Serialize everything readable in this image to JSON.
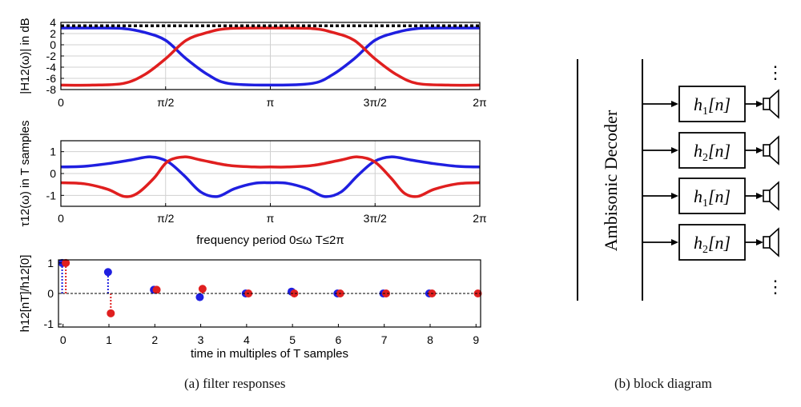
{
  "captions": {
    "a": "(a) filter responses",
    "b": "(b) block diagram"
  },
  "colors": {
    "series1": "#1f1fe0",
    "series2": "#e01f1f",
    "reference": "#000000",
    "grid": "#d0d0d0"
  },
  "chart_data": [
    {
      "type": "line",
      "ylabel": "|H12(ω)| in dB",
      "ylim": [
        -8,
        4
      ],
      "yticks": [
        "4",
        "2",
        "0",
        "-2",
        "-4",
        "-6",
        "-8"
      ],
      "xlim": [
        0,
        6.2832
      ],
      "xticks": [
        "0",
        "π/2",
        "π",
        "3π/2",
        "2π"
      ],
      "grid": true,
      "series": [
        {
          "color": "blue",
          "x": [
            0,
            0.47,
            0.94,
            1.26,
            1.57,
            1.88,
            2.2,
            2.51,
            3.14,
            3.77,
            4.08,
            4.4,
            4.71,
            5.03,
            5.34,
            5.81,
            6.28
          ],
          "y": [
            3,
            3,
            2.9,
            2.2,
            0.8,
            -2.5,
            -5.3,
            -6.9,
            -7.2,
            -6.9,
            -5.3,
            -2.5,
            0.8,
            2.2,
            2.9,
            3,
            3
          ]
        },
        {
          "color": "red",
          "x": [
            0,
            0.47,
            0.94,
            1.26,
            1.57,
            1.88,
            2.2,
            2.51,
            3.14,
            3.77,
            4.08,
            4.4,
            4.71,
            5.03,
            5.34,
            5.81,
            6.28
          ],
          "y": [
            -7.2,
            -7.2,
            -6.9,
            -5.3,
            -2.5,
            0.8,
            2.2,
            2.9,
            3,
            2.9,
            2.2,
            0.8,
            -2.5,
            -5.3,
            -6.9,
            -7.2,
            -7.2
          ]
        },
        {
          "color": "black-dotted",
          "x": [
            0,
            6.28
          ],
          "y": [
            3.4,
            3.4
          ]
        }
      ]
    },
    {
      "type": "line",
      "ylabel": "τ12(ω) in T samples",
      "xlabel": "frequency period 0≤ω T≤2π",
      "ylim": [
        -1.5,
        1.5
      ],
      "yticks": [
        "1",
        "0",
        "-1"
      ],
      "xlim": [
        0,
        6.2832
      ],
      "xticks": [
        "0",
        "π/2",
        "π",
        "3π/2",
        "2π"
      ],
      "grid": true,
      "series": [
        {
          "color": "blue",
          "x": [
            0,
            0.35,
            0.7,
            1.05,
            1.35,
            1.6,
            1.85,
            2.1,
            2.35,
            2.6,
            2.9,
            3.14,
            3.4,
            3.7,
            3.95,
            4.2,
            4.45,
            4.7,
            4.95,
            5.25,
            5.6,
            5.95,
            6.28
          ],
          "y": [
            0.3,
            0.33,
            0.45,
            0.62,
            0.76,
            0.55,
            -0.1,
            -0.85,
            -1.05,
            -0.7,
            -0.45,
            -0.42,
            -0.45,
            -0.7,
            -1.05,
            -0.85,
            -0.1,
            0.55,
            0.76,
            0.62,
            0.45,
            0.33,
            0.3
          ]
        },
        {
          "color": "red",
          "x": [
            0,
            0.35,
            0.7,
            0.95,
            1.15,
            1.4,
            1.6,
            1.85,
            2.1,
            2.5,
            2.9,
            3.14,
            3.4,
            3.8,
            4.2,
            4.45,
            4.7,
            4.95,
            5.15,
            5.35,
            5.6,
            5.95,
            6.28
          ],
          "y": [
            -0.42,
            -0.47,
            -0.72,
            -1.05,
            -0.9,
            -0.2,
            0.55,
            0.76,
            0.62,
            0.38,
            0.3,
            0.3,
            0.3,
            0.38,
            0.62,
            0.76,
            0.55,
            -0.2,
            -0.9,
            -1.05,
            -0.72,
            -0.47,
            -0.42
          ]
        }
      ]
    },
    {
      "type": "stem",
      "ylabel": "h12[nT]/h12[0]",
      "xlabel": "time in multiples of T samples",
      "ylim": [
        -1.1,
        1.1
      ],
      "yticks": [
        "1",
        "0",
        "-1"
      ],
      "xlim": [
        -0.1,
        9.1
      ],
      "xticks": [
        "0",
        "1",
        "2",
        "3",
        "4",
        "5",
        "6",
        "7",
        "8",
        "9"
      ],
      "grid": false,
      "series": [
        {
          "color": "blue",
          "x": [
            0,
            1,
            2,
            3,
            4,
            5,
            6,
            7,
            8
          ],
          "y": [
            1.0,
            0.7,
            0.12,
            -0.12,
            0.0,
            0.06,
            0.0,
            0.0,
            0.0
          ]
        },
        {
          "color": "red",
          "x": [
            0,
            1,
            2,
            3,
            4,
            5,
            6,
            7,
            8,
            9
          ],
          "y": [
            1.0,
            -0.65,
            0.12,
            0.15,
            0.0,
            0.0,
            0.0,
            0.0,
            0.0,
            0.0
          ]
        }
      ]
    }
  ],
  "block_diagram": {
    "decoder_label": "Ambisonic Decoder",
    "filters": [
      {
        "name": "h",
        "sub": "1",
        "arg": "[n]"
      },
      {
        "name": "h",
        "sub": "2",
        "arg": "[n]"
      },
      {
        "name": "h",
        "sub": "1",
        "arg": "[n]"
      },
      {
        "name": "h",
        "sub": "2",
        "arg": "[n]"
      }
    ],
    "ellipsis": "⋮"
  }
}
